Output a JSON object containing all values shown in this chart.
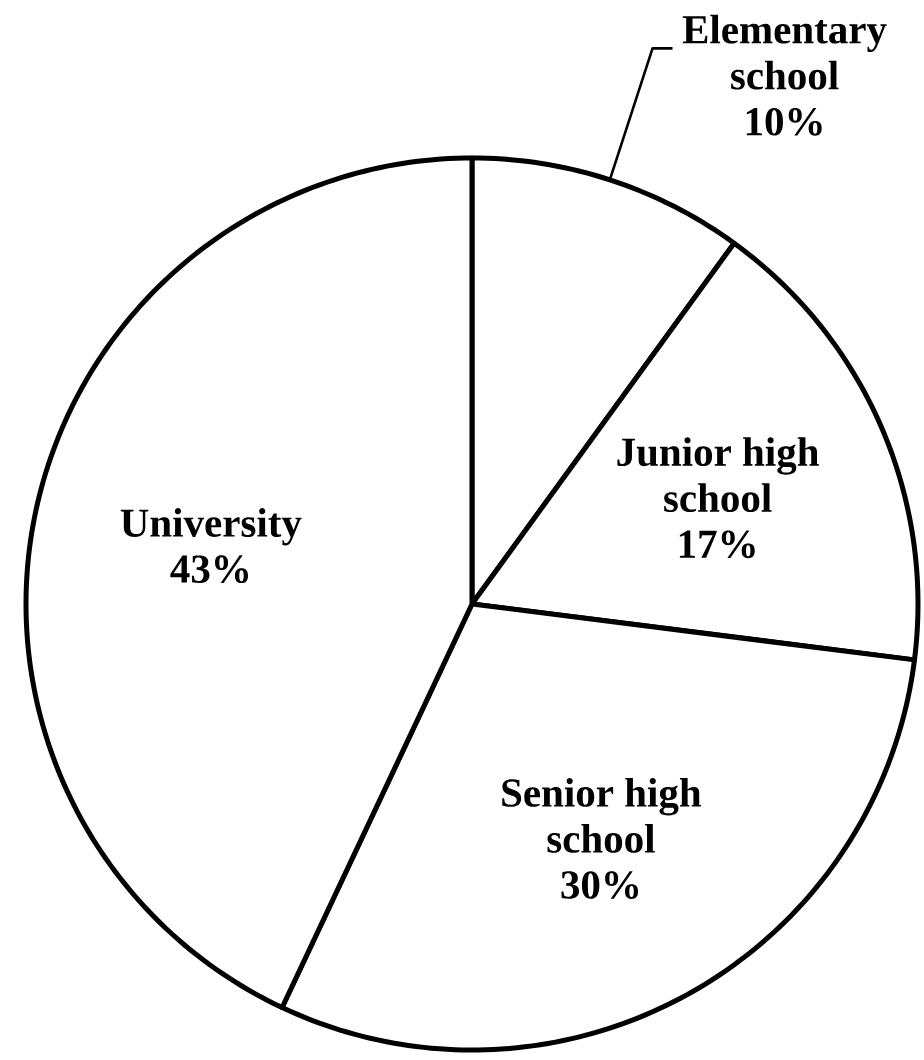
{
  "chart_data": {
    "type": "pie",
    "categories": [
      "Elementary school",
      "Junior high school",
      "Senior high school",
      "University"
    ],
    "values": [
      10,
      17,
      30,
      43
    ],
    "value_labels": [
      "10%",
      "17%",
      "30%",
      "43%"
    ],
    "colors": [
      "#ffffff",
      "#ffffff",
      "#ffffff",
      "#ffffff"
    ]
  }
}
